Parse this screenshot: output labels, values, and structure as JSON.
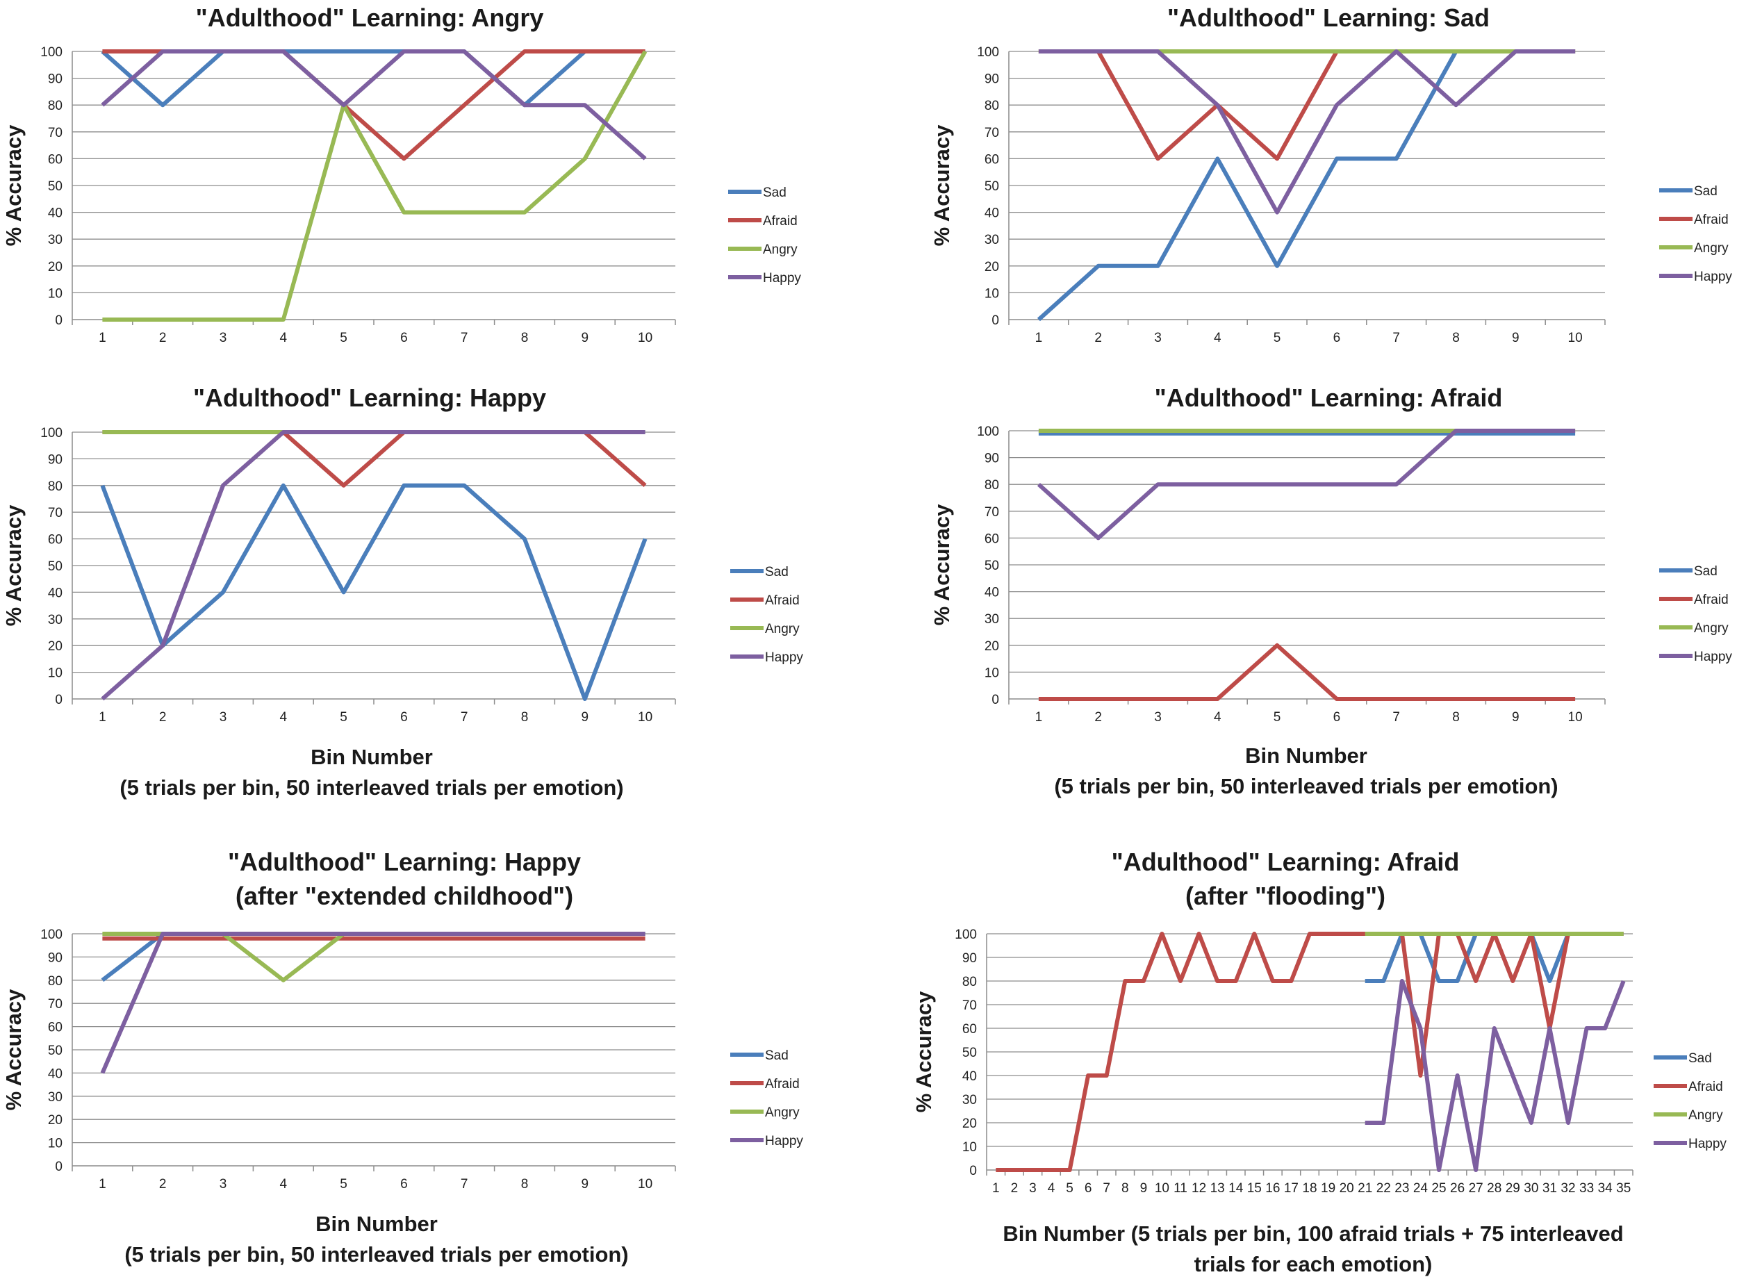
{
  "colors": {
    "Sad": "#4a7ebb",
    "Afraid": "#be4b48",
    "Angry": "#98b954",
    "Happy": "#7d5fa0"
  },
  "chart_data": [
    {
      "type": "line",
      "title": [
        "\"Adulthood\" Learning: Angry"
      ],
      "xlabel": [],
      "ylabel": "% Accuracy",
      "categories": [
        "1",
        "2",
        "3",
        "4",
        "5",
        "6",
        "7",
        "8",
        "9",
        "10"
      ],
      "yticks": [
        "0",
        "10",
        "20",
        "30",
        "40",
        "50",
        "60",
        "70",
        "80",
        "90",
        "100"
      ],
      "ylim": [
        0,
        100
      ],
      "series": [
        {
          "name": "Sad",
          "values": [
            100,
            80,
            100,
            100,
            100,
            100,
            100,
            80,
            100,
            100
          ]
        },
        {
          "name": "Afraid",
          "values": [
            100,
            100,
            100,
            100,
            80,
            60,
            80,
            100,
            100,
            100
          ]
        },
        {
          "name": "Angry",
          "values": [
            0,
            0,
            0,
            0,
            80,
            40,
            40,
            40,
            60,
            100
          ]
        },
        {
          "name": "Happy",
          "values": [
            80,
            100,
            100,
            100,
            80,
            100,
            100,
            80,
            80,
            60
          ]
        }
      ],
      "legend": "right"
    },
    {
      "type": "line",
      "title": [
        "\"Adulthood\" Learning: Sad"
      ],
      "xlabel": [],
      "ylabel": "% Accuracy",
      "categories": [
        "1",
        "2",
        "3",
        "4",
        "5",
        "6",
        "7",
        "8",
        "9",
        "10"
      ],
      "yticks": [
        "0",
        "10",
        "20",
        "30",
        "40",
        "50",
        "60",
        "70",
        "80",
        "90",
        "100"
      ],
      "ylim": [
        0,
        100
      ],
      "series": [
        {
          "name": "Sad",
          "values": [
            0,
            20,
            20,
            60,
            20,
            60,
            60,
            100,
            100,
            100
          ]
        },
        {
          "name": "Afraid",
          "values": [
            100,
            100,
            60,
            80,
            60,
            100,
            100,
            100,
            100,
            100
          ]
        },
        {
          "name": "Angry",
          "values": [
            100,
            100,
            100,
            100,
            100,
            100,
            100,
            100,
            100,
            100
          ]
        },
        {
          "name": "Happy",
          "values": [
            100,
            100,
            100,
            80,
            40,
            80,
            100,
            80,
            100,
            100
          ]
        }
      ],
      "legend": "right"
    },
    {
      "type": "line",
      "title": [
        "\"Adulthood\" Learning: Happy"
      ],
      "xlabel": [
        "Bin Number",
        "(5 trials per bin, 50 interleaved trials per emotion)"
      ],
      "ylabel": "% Accuracy",
      "categories": [
        "1",
        "2",
        "3",
        "4",
        "5",
        "6",
        "7",
        "8",
        "9",
        "10"
      ],
      "yticks": [
        "0",
        "10",
        "20",
        "30",
        "40",
        "50",
        "60",
        "70",
        "80",
        "90",
        "100"
      ],
      "ylim": [
        0,
        100
      ],
      "series": [
        {
          "name": "Sad",
          "values": [
            80,
            20,
            40,
            80,
            40,
            80,
            80,
            60,
            0,
            60
          ]
        },
        {
          "name": "Afraid",
          "values": [
            100,
            100,
            100,
            100,
            80,
            100,
            100,
            100,
            100,
            80
          ]
        },
        {
          "name": "Angry",
          "values": [
            100,
            100,
            100,
            100,
            100,
            100,
            100,
            100,
            100,
            100
          ]
        },
        {
          "name": "Happy",
          "values": [
            0,
            20,
            80,
            100,
            100,
            100,
            100,
            100,
            100,
            100
          ]
        }
      ],
      "legend": "right"
    },
    {
      "type": "line",
      "title": [
        "\"Adulthood\" Learning: Afraid"
      ],
      "xlabel": [
        "Bin Number",
        "(5 trials per bin, 50 interleaved trials per emotion)"
      ],
      "ylabel": "% Accuracy",
      "categories": [
        "1",
        "2",
        "3",
        "4",
        "5",
        "6",
        "7",
        "8",
        "9",
        "10"
      ],
      "yticks": [
        "0",
        "10",
        "20",
        "30",
        "40",
        "50",
        "60",
        "70",
        "80",
        "90",
        "100"
      ],
      "ylim": [
        0,
        100
      ],
      "series": [
        {
          "name": "Sad",
          "values": [
            99,
            99,
            99,
            99,
            99,
            99,
            99,
            99,
            99,
            99
          ]
        },
        {
          "name": "Afraid",
          "values": [
            0,
            0,
            0,
            0,
            20,
            0,
            0,
            0,
            0,
            0
          ]
        },
        {
          "name": "Angry",
          "values": [
            100,
            100,
            100,
            100,
            100,
            100,
            100,
            100,
            100,
            100
          ]
        },
        {
          "name": "Happy",
          "values": [
            80,
            60,
            80,
            80,
            80,
            80,
            80,
            100,
            100,
            100
          ]
        }
      ],
      "legend": "right"
    },
    {
      "type": "line",
      "title": [
        "\"Adulthood\" Learning: Happy",
        "(after \"extended childhood\")"
      ],
      "xlabel": [
        "Bin Number",
        "(5 trials per bin, 50 interleaved trials per emotion)"
      ],
      "ylabel": "% Accuracy",
      "categories": [
        "1",
        "2",
        "3",
        "4",
        "5",
        "6",
        "7",
        "8",
        "9",
        "10"
      ],
      "yticks": [
        "0",
        "10",
        "20",
        "30",
        "40",
        "50",
        "60",
        "70",
        "80",
        "90",
        "100"
      ],
      "ylim": [
        0,
        100
      ],
      "series": [
        {
          "name": "Sad",
          "values": [
            80,
            100,
            100,
            100,
            100,
            100,
            100,
            100,
            100,
            100
          ]
        },
        {
          "name": "Afraid",
          "values": [
            98,
            98,
            98,
            98,
            98,
            98,
            98,
            98,
            98,
            98
          ]
        },
        {
          "name": "Angry",
          "values": [
            100,
            100,
            100,
            80,
            100,
            100,
            100,
            100,
            100,
            100
          ]
        },
        {
          "name": "Happy",
          "values": [
            40,
            100,
            100,
            100,
            100,
            100,
            100,
            100,
            100,
            100
          ]
        }
      ],
      "legend": "right"
    },
    {
      "type": "line",
      "title": [
        "\"Adulthood\" Learning: Afraid",
        "(after \"flooding\")"
      ],
      "xlabel": [
        "Bin Number (5 trials per bin, 100 afraid trials + 75 interleaved",
        "trials for each emotion)"
      ],
      "ylabel": "% Accuracy",
      "categories": [
        "1",
        "2",
        "3",
        "4",
        "5",
        "6",
        "7",
        "8",
        "9",
        "10",
        "11",
        "12",
        "13",
        "14",
        "15",
        "16",
        "17",
        "18",
        "19",
        "20",
        "21",
        "22",
        "23",
        "24",
        "25",
        "26",
        "27",
        "28",
        "29",
        "30",
        "31",
        "32",
        "33",
        "34",
        "35"
      ],
      "yticks": [
        "0",
        "10",
        "20",
        "30",
        "40",
        "50",
        "60",
        "70",
        "80",
        "90",
        "100"
      ],
      "ylim": [
        0,
        100
      ],
      "series": [
        {
          "name": "Sad",
          "values": [
            null,
            null,
            null,
            null,
            null,
            null,
            null,
            null,
            null,
            null,
            null,
            null,
            null,
            null,
            null,
            null,
            null,
            null,
            null,
            null,
            80,
            80,
            100,
            100,
            80,
            80,
            100,
            100,
            100,
            100,
            80,
            100,
            100,
            100,
            100
          ]
        },
        {
          "name": "Afraid",
          "values": [
            0,
            0,
            0,
            0,
            0,
            40,
            40,
            80,
            80,
            100,
            80,
            100,
            80,
            80,
            100,
            80,
            80,
            100,
            100,
            100,
            100,
            100,
            100,
            40,
            100,
            100,
            80,
            100,
            80,
            100,
            60,
            100,
            100,
            100,
            100
          ]
        },
        {
          "name": "Angry",
          "values": [
            null,
            null,
            null,
            null,
            null,
            null,
            null,
            null,
            null,
            null,
            null,
            null,
            null,
            null,
            null,
            null,
            null,
            null,
            null,
            null,
            100,
            100,
            100,
            100,
            100,
            100,
            100,
            100,
            100,
            100,
            100,
            100,
            100,
            100,
            100
          ]
        },
        {
          "name": "Happy",
          "values": [
            null,
            null,
            null,
            null,
            null,
            null,
            null,
            null,
            null,
            null,
            null,
            null,
            null,
            null,
            null,
            null,
            null,
            null,
            null,
            null,
            20,
            20,
            80,
            60,
            0,
            40,
            0,
            60,
            40,
            20,
            60,
            20,
            60,
            60,
            80
          ]
        }
      ],
      "legend": "right"
    }
  ]
}
